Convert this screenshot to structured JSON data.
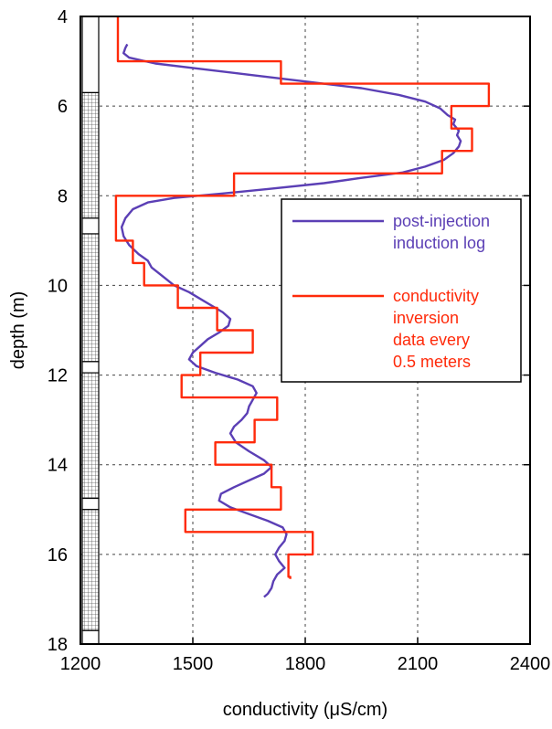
{
  "chart_data": {
    "type": "line",
    "title": "",
    "xlabel": "conductivity (μS/cm)",
    "ylabel": "depth (m)",
    "xlim": [
      1200,
      2400
    ],
    "ylim": [
      4,
      18
    ],
    "y_inverted": true,
    "grid": true,
    "xticks": [
      "1200",
      "1500",
      "1800",
      "2100",
      "2400"
    ],
    "yticks": [
      "4",
      "6",
      "8",
      "10",
      "12",
      "14",
      "16",
      "18"
    ],
    "legend": {
      "placement": "right-middle"
    },
    "series": [
      {
        "name": "post-injection induction log",
        "color": "#5b3fb5",
        "points": [
          [
            1325,
            4.62
          ],
          [
            1320,
            4.7
          ],
          [
            1315,
            4.82
          ],
          [
            1330,
            4.92
          ],
          [
            1400,
            5.05
          ],
          [
            1500,
            5.15
          ],
          [
            1650,
            5.3
          ],
          [
            1800,
            5.45
          ],
          [
            1950,
            5.6
          ],
          [
            2050,
            5.75
          ],
          [
            2120,
            5.9
          ],
          [
            2160,
            6.05
          ],
          [
            2180,
            6.2
          ],
          [
            2200,
            6.3
          ],
          [
            2195,
            6.4
          ],
          [
            2210,
            6.55
          ],
          [
            2205,
            6.65
          ],
          [
            2215,
            6.78
          ],
          [
            2210,
            6.9
          ],
          [
            2195,
            7.05
          ],
          [
            2170,
            7.2
          ],
          [
            2120,
            7.35
          ],
          [
            2060,
            7.48
          ],
          [
            1950,
            7.6
          ],
          [
            1850,
            7.72
          ],
          [
            1700,
            7.85
          ],
          [
            1580,
            7.95
          ],
          [
            1450,
            8.05
          ],
          [
            1380,
            8.15
          ],
          [
            1340,
            8.3
          ],
          [
            1320,
            8.5
          ],
          [
            1310,
            8.7
          ],
          [
            1315,
            8.9
          ],
          [
            1330,
            9.1
          ],
          [
            1355,
            9.3
          ],
          [
            1380,
            9.45
          ],
          [
            1390,
            9.6
          ],
          [
            1420,
            9.8
          ],
          [
            1450,
            10.0
          ],
          [
            1490,
            10.15
          ],
          [
            1520,
            10.3
          ],
          [
            1550,
            10.45
          ],
          [
            1580,
            10.6
          ],
          [
            1600,
            10.75
          ],
          [
            1595,
            10.9
          ],
          [
            1570,
            11.05
          ],
          [
            1540,
            11.2
          ],
          [
            1520,
            11.35
          ],
          [
            1500,
            11.5
          ],
          [
            1490,
            11.65
          ],
          [
            1510,
            11.8
          ],
          [
            1560,
            11.95
          ],
          [
            1620,
            12.1
          ],
          [
            1660,
            12.25
          ],
          [
            1670,
            12.4
          ],
          [
            1660,
            12.55
          ],
          [
            1650,
            12.7
          ],
          [
            1645,
            12.85
          ],
          [
            1630,
            13.0
          ],
          [
            1610,
            13.15
          ],
          [
            1600,
            13.3
          ],
          [
            1615,
            13.5
          ],
          [
            1650,
            13.7
          ],
          [
            1690,
            13.9
          ],
          [
            1710,
            14.05
          ],
          [
            1690,
            14.2
          ],
          [
            1650,
            14.35
          ],
          [
            1610,
            14.5
          ],
          [
            1575,
            14.65
          ],
          [
            1570,
            14.8
          ],
          [
            1600,
            14.95
          ],
          [
            1650,
            15.1
          ],
          [
            1700,
            15.25
          ],
          [
            1740,
            15.4
          ],
          [
            1750,
            15.55
          ],
          [
            1745,
            15.7
          ],
          [
            1730,
            15.85
          ],
          [
            1720,
            16.0
          ],
          [
            1730,
            16.15
          ],
          [
            1745,
            16.3
          ],
          [
            1725,
            16.45
          ],
          [
            1715,
            16.6
          ],
          [
            1710,
            16.75
          ],
          [
            1700,
            16.88
          ],
          [
            1690,
            16.95
          ]
        ]
      },
      {
        "name": "conductivity inversion data every 0.5 meters",
        "color": "#ff2a0a",
        "step": true,
        "points": [
          [
            1300,
            4.0
          ],
          [
            1300,
            5.0
          ],
          [
            1735,
            5.0
          ],
          [
            1735,
            5.5
          ],
          [
            2290,
            5.5
          ],
          [
            2290,
            6.0
          ],
          [
            2190,
            6.0
          ],
          [
            2190,
            6.5
          ],
          [
            2245,
            6.5
          ],
          [
            2245,
            7.0
          ],
          [
            2165,
            7.0
          ],
          [
            2165,
            7.5
          ],
          [
            1610,
            7.5
          ],
          [
            1610,
            8.0
          ],
          [
            1295,
            8.0
          ],
          [
            1295,
            9.0
          ],
          [
            1340,
            9.0
          ],
          [
            1340,
            9.5
          ],
          [
            1370,
            9.5
          ],
          [
            1370,
            10.0
          ],
          [
            1460,
            10.0
          ],
          [
            1460,
            10.5
          ],
          [
            1565,
            10.5
          ],
          [
            1565,
            11.0
          ],
          [
            1660,
            11.0
          ],
          [
            1660,
            11.5
          ],
          [
            1520,
            11.5
          ],
          [
            1520,
            12.0
          ],
          [
            1470,
            12.0
          ],
          [
            1470,
            12.5
          ],
          [
            1725,
            12.5
          ],
          [
            1725,
            13.0
          ],
          [
            1665,
            13.0
          ],
          [
            1665,
            13.5
          ],
          [
            1560,
            13.5
          ],
          [
            1560,
            14.0
          ],
          [
            1710,
            14.0
          ],
          [
            1710,
            14.5
          ],
          [
            1735,
            14.5
          ],
          [
            1735,
            15.0
          ],
          [
            1480,
            15.0
          ],
          [
            1480,
            15.5
          ],
          [
            1820,
            15.5
          ],
          [
            1820,
            16.0
          ],
          [
            1755,
            16.0
          ],
          [
            1755,
            16.5
          ],
          [
            1760,
            16.5
          ],
          [
            1760,
            16.55
          ]
        ]
      }
    ],
    "legend_entries": [
      {
        "lines": [
          "post-injection",
          "induction log"
        ],
        "color": "#5b3fb5"
      },
      {
        "lines": [
          "conductivity",
          "inversion",
          "data every",
          "0.5 meters"
        ],
        "color": "#ff2a0a"
      }
    ],
    "lithology_column": {
      "segments": [
        {
          "from": 4.0,
          "to": 5.7,
          "pattern": "blank"
        },
        {
          "from": 5.7,
          "to": 8.5,
          "pattern": "grid"
        },
        {
          "from": 8.5,
          "to": 8.85,
          "pattern": "blank"
        },
        {
          "from": 8.85,
          "to": 11.7,
          "pattern": "grid"
        },
        {
          "from": 11.7,
          "to": 11.95,
          "pattern": "blank"
        },
        {
          "from": 11.95,
          "to": 14.75,
          "pattern": "grid"
        },
        {
          "from": 14.75,
          "to": 15.0,
          "pattern": "blank"
        },
        {
          "from": 15.0,
          "to": 17.7,
          "pattern": "grid"
        },
        {
          "from": 17.7,
          "to": 18.0,
          "pattern": "blank"
        }
      ]
    }
  }
}
